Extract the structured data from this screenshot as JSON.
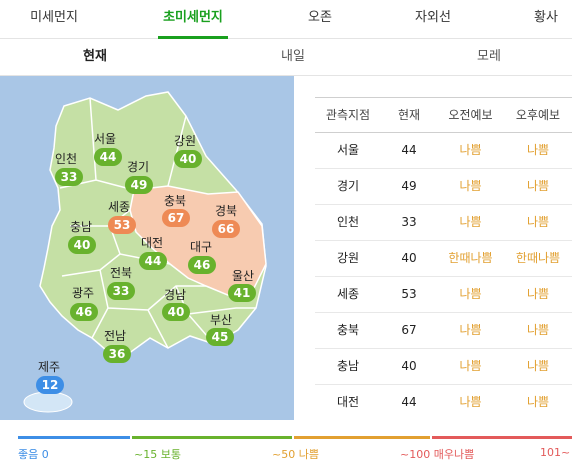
{
  "main_tabs": [
    "미세먼지",
    "초미세먼지",
    "오존",
    "자외선",
    "황사"
  ],
  "active_main_tab": 1,
  "sub_tabs": [
    "현재",
    "내일",
    "모레"
  ],
  "active_sub_tab": 0,
  "regions": [
    {
      "name": "서울",
      "value": "44",
      "level": "good"
    },
    {
      "name": "강원",
      "value": "40",
      "level": "good"
    },
    {
      "name": "인천",
      "value": "33",
      "level": "good"
    },
    {
      "name": "경기",
      "value": "49",
      "level": "good"
    },
    {
      "name": "세종",
      "value": "53",
      "level": "bad"
    },
    {
      "name": "충북",
      "value": "67",
      "level": "bad"
    },
    {
      "name": "경북",
      "value": "66",
      "level": "bad"
    },
    {
      "name": "충남",
      "value": "40",
      "level": "good"
    },
    {
      "name": "대전",
      "value": "44",
      "level": "good"
    },
    {
      "name": "대구",
      "value": "46",
      "level": "good"
    },
    {
      "name": "전북",
      "value": "33",
      "level": "good"
    },
    {
      "name": "울산",
      "value": "41",
      "level": "good"
    },
    {
      "name": "광주",
      "value": "46",
      "level": "good"
    },
    {
      "name": "경남",
      "value": "40",
      "level": "good"
    },
    {
      "name": "부산",
      "value": "45",
      "level": "good"
    },
    {
      "name": "전남",
      "value": "36",
      "level": "good"
    },
    {
      "name": "제주",
      "value": "12",
      "level": "clean"
    }
  ],
  "table": {
    "headers": [
      "관측지점",
      "현재",
      "오전예보",
      "오후예보"
    ],
    "rows": [
      [
        "서울",
        "44",
        "나쁨",
        "나쁨"
      ],
      [
        "경기",
        "49",
        "나쁨",
        "나쁨"
      ],
      [
        "인천",
        "33",
        "나쁨",
        "나쁨"
      ],
      [
        "강원",
        "40",
        "한때나쁨",
        "한때나쁨"
      ],
      [
        "세종",
        "53",
        "나쁨",
        "나쁨"
      ],
      [
        "충북",
        "67",
        "나쁨",
        "나쁨"
      ],
      [
        "충남",
        "40",
        "나쁨",
        "나쁨"
      ],
      [
        "대전",
        "44",
        "나쁨",
        "나쁨"
      ]
    ]
  },
  "legend": [
    {
      "label": "좋음 0",
      "color": "#3d8ee6"
    },
    {
      "label": "~15 보통",
      "color": "#68b22d"
    },
    {
      "label": "~50 나쁨",
      "color": "#e2a031"
    },
    {
      "label": "~100 매우나쁨",
      "color": "#e35a5a"
    },
    {
      "label": "101~",
      "color": "#e35a5a"
    }
  ],
  "colors": {
    "accent": "#19a01e",
    "good": "#68b22d",
    "bad": "#ee8a55",
    "clean": "#3d8ee6",
    "forecast_text": "#e2a031"
  }
}
